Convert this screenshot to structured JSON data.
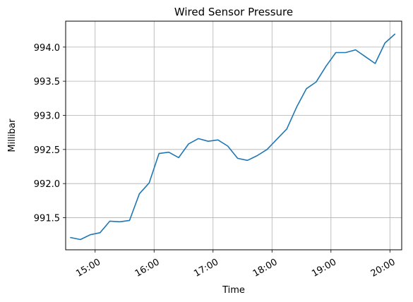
{
  "chart_data": {
    "type": "line",
    "title": "Wired Sensor Pressure",
    "xlabel": "Time",
    "ylabel": "Millibar",
    "grid": true,
    "legend": "none",
    "line_color": "#1f77b4",
    "xlim": [
      "14:30",
      "20:12"
    ],
    "ylim": [
      991.03,
      994.38
    ],
    "x_ticks": [
      "15:00",
      "16:00",
      "17:00",
      "18:00",
      "19:00",
      "20:00"
    ],
    "y_ticks": [
      "991.5",
      "992.0",
      "992.5",
      "993.0",
      "993.5",
      "994.0"
    ],
    "series": [
      {
        "x": [
          "14:35",
          "14:45",
          "14:55",
          "15:05",
          "15:15",
          "15:25",
          "15:35",
          "15:45",
          "15:55",
          "16:05",
          "16:15",
          "16:25",
          "16:35",
          "16:45",
          "16:55",
          "17:05",
          "17:15",
          "17:25",
          "17:35",
          "17:45",
          "17:55",
          "18:05",
          "18:15",
          "18:25",
          "18:35",
          "18:45",
          "18:55",
          "19:05",
          "19:15",
          "19:25",
          "19:35",
          "19:45",
          "19:55",
          "20:05"
        ],
        "values": [
          991.21,
          991.18,
          991.25,
          991.28,
          991.45,
          991.44,
          991.46,
          991.85,
          992.01,
          992.44,
          992.46,
          992.38,
          992.58,
          992.66,
          992.62,
          992.64,
          992.55,
          992.37,
          992.34,
          992.41,
          992.5,
          992.65,
          992.8,
          993.12,
          993.39,
          993.49,
          993.72,
          993.92,
          993.92,
          993.96,
          993.86,
          993.76,
          994.06,
          994.19
        ]
      }
    ]
  }
}
